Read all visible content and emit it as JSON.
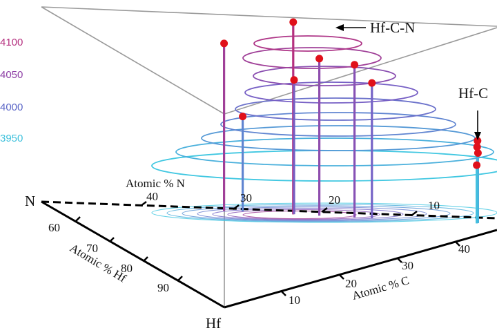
{
  "chart_data": {
    "type": "scatter",
    "subtype": "3d-stem-with-contours",
    "z_axis": {
      "ticks": [
        {
          "label": "4100",
          "value": 4100,
          "color": "#b5307f"
        },
        {
          "label": "4050",
          "value": 4050,
          "color": "#8e3fa6"
        },
        {
          "label": "4000",
          "value": 4000,
          "color": "#5b66c7"
        },
        {
          "label": "3950",
          "value": 3950,
          "color": "#3fc1dc"
        }
      ],
      "colormap": [
        "#3ccfe3",
        "#5a8fd4",
        "#7a5cc4",
        "#b5307f"
      ]
    },
    "axes": {
      "n": {
        "label": "Atomic % N",
        "ticks": [
          "40",
          "30",
          "20",
          "10"
        ],
        "corner": "N"
      },
      "hf": {
        "label": "Atomic % Hf",
        "ticks": [
          "60",
          "70",
          "80",
          "90"
        ],
        "corner": "Hf"
      },
      "c": {
        "label": "Atomic % C",
        "ticks": [
          "10",
          "20",
          "30",
          "40"
        ]
      }
    },
    "annotations": [
      {
        "text": "Hf-C-N",
        "arrow": "left"
      },
      {
        "text": "Hf-C",
        "arrow": "down"
      }
    ],
    "series": [
      {
        "marker_color": "#e0101a",
        "points": [
          {
            "n": 21,
            "c": 30,
            "z": 4125
          },
          {
            "n": 29,
            "c": 21,
            "z": 4090
          },
          {
            "n": 18,
            "c": 33,
            "z": 4065
          },
          {
            "n": 14,
            "c": 36,
            "z": 4055
          },
          {
            "n": 21,
            "c": 28,
            "z": 4030
          },
          {
            "n": 12,
            "c": 38,
            "z": 4025
          },
          {
            "n": 27,
            "c": 20,
            "z": 3970
          },
          {
            "n": 0,
            "c": 47,
            "z": 3930
          },
          {
            "n": 0,
            "c": 48,
            "z": 3920
          },
          {
            "n": 0,
            "c": 46,
            "z": 3910
          },
          {
            "n": 0,
            "c": 49,
            "z": 3890
          }
        ]
      }
    ],
    "grid": false,
    "legend": "none"
  }
}
